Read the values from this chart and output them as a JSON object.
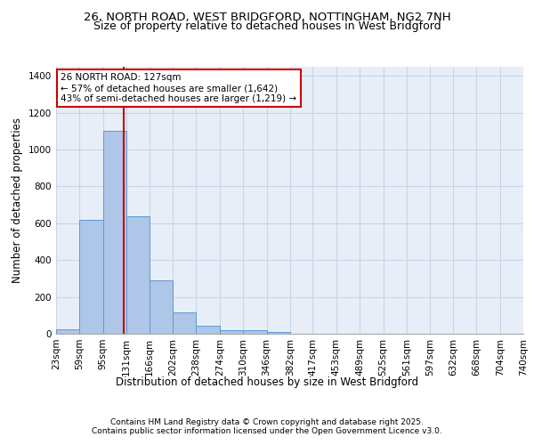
{
  "title_line1": "26, NORTH ROAD, WEST BRIDGFORD, NOTTINGHAM, NG2 7NH",
  "title_line2": "Size of property relative to detached houses in West Bridgford",
  "xlabel": "Distribution of detached houses by size in West Bridgford",
  "ylabel": "Number of detached properties",
  "bin_labels": [
    "23sqm",
    "59sqm",
    "95sqm",
    "131sqm",
    "166sqm",
    "202sqm",
    "238sqm",
    "274sqm",
    "310sqm",
    "346sqm",
    "382sqm",
    "417sqm",
    "453sqm",
    "489sqm",
    "525sqm",
    "561sqm",
    "597sqm",
    "632sqm",
    "668sqm",
    "704sqm",
    "740sqm"
  ],
  "bar_heights": [
    25,
    620,
    1100,
    640,
    290,
    115,
    45,
    20,
    18,
    10,
    0,
    0,
    0,
    0,
    0,
    0,
    0,
    0,
    0,
    0
  ],
  "bin_edges": [
    23,
    59,
    95,
    131,
    166,
    202,
    238,
    274,
    310,
    346,
    382,
    417,
    453,
    489,
    525,
    561,
    597,
    632,
    668,
    704,
    740
  ],
  "bar_color": "#aec6e8",
  "bar_edge_color": "#5b9bd5",
  "grid_color": "#c8d4e8",
  "bg_color": "#e8eef8",
  "red_line_x": 127,
  "annotation_text": "26 NORTH ROAD: 127sqm\n← 57% of detached houses are smaller (1,642)\n43% of semi-detached houses are larger (1,219) →",
  "annotation_box_color": "#ffffff",
  "annotation_border_color": "#cc0000",
  "ylim": [
    0,
    1450
  ],
  "yticks": [
    0,
    200,
    400,
    600,
    800,
    1000,
    1200,
    1400
  ],
  "footer_line1": "Contains HM Land Registry data © Crown copyright and database right 2025.",
  "footer_line2": "Contains public sector information licensed under the Open Government Licence v3.0.",
  "title_fontsize": 9.5,
  "title2_fontsize": 9,
  "axis_label_fontsize": 8.5,
  "tick_fontsize": 7.5,
  "annotation_fontsize": 7.5,
  "footer_fontsize": 6.5
}
